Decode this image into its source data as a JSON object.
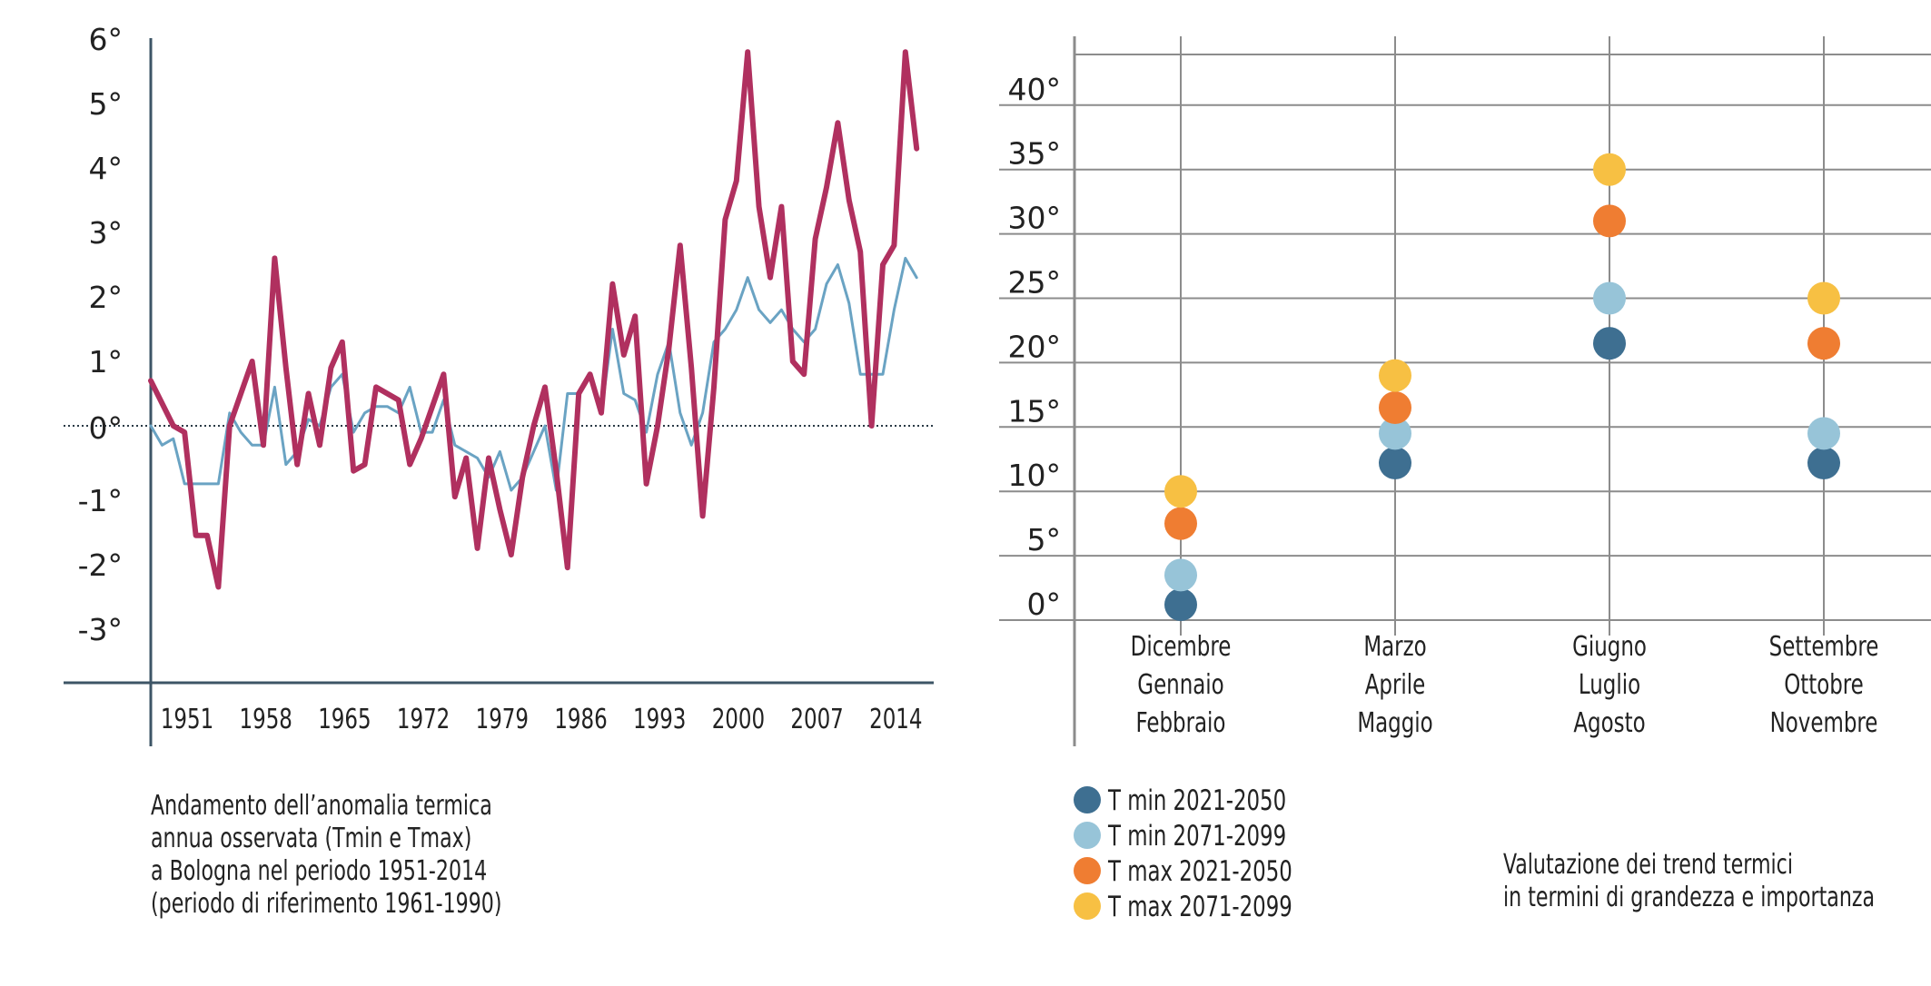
{
  "colors": {
    "tmax_observed": "#b0305f",
    "tmin_observed": "#6aa3c3",
    "axis": "#3d5566",
    "grid": "#8c8c8c",
    "t_min_2021_2050": "#3e6f91",
    "t_min_2071_2099": "#97c4d8",
    "t_max_2021_2050": "#ef7d32",
    "t_max_2071_2099": "#f7c043"
  },
  "left_caption": [
    "Andamento dell’anomalia termica",
    "annua osservata (Tmin e Tmax)",
    "a Bologna nel periodo 1951-2014",
    "(periodo di riferimento 1961-1990)"
  ],
  "right_caption": [
    "Valutazione dei trend termici",
    "in termini di grandezza e importanza"
  ],
  "chart_data": [
    {
      "type": "line",
      "x_tick_labels": [
        "1951",
        "1958",
        "1965",
        "1972",
        "1979",
        "1986",
        "1993",
        "2000",
        "2007",
        "2014"
      ],
      "y_tick_labels": [
        "6°",
        "5°",
        "4°",
        "3°",
        "2°",
        "1°",
        "0°",
        "-1°",
        "-2°",
        "-3°"
      ],
      "ylim": [
        -3.6,
        6.2
      ],
      "xlim": [
        1948,
        2018
      ],
      "reference_line": 0,
      "series": [
        {
          "key": "tmax",
          "x": [
            1948,
            1950,
            1951,
            1952,
            1953,
            1954,
            1955,
            1956,
            1957,
            1958,
            1959,
            1960,
            1961,
            1962,
            1963,
            1964,
            1965,
            1966,
            1967,
            1968,
            1969,
            1970,
            1971,
            1972,
            1973,
            1974,
            1975,
            1976,
            1977,
            1978,
            1979,
            1980,
            1981,
            1982,
            1983,
            1984,
            1985,
            1986,
            1987,
            1988,
            1989,
            1990,
            1991,
            1992,
            1993,
            1994,
            1995,
            1996,
            1997,
            1998,
            1999,
            2000,
            2001,
            2002,
            2003,
            2004,
            2005,
            2006,
            2007,
            2008,
            2009,
            2010,
            2011,
            2012,
            2013,
            2014,
            2015,
            2016
          ],
          "values": [
            0.7,
            0.0,
            -0.1,
            -1.7,
            -1.7,
            -2.5,
            0.0,
            0.5,
            1.0,
            -0.3,
            2.6,
            0.9,
            -0.6,
            0.5,
            -0.3,
            0.9,
            1.3,
            -0.7,
            -0.6,
            0.6,
            0.5,
            0.4,
            -0.6,
            -0.2,
            0.3,
            0.8,
            -1.1,
            -0.5,
            -1.9,
            -0.5,
            -1.3,
            -2.0,
            -0.8,
            0.0,
            0.6,
            -0.7,
            -2.2,
            0.5,
            0.8,
            0.2,
            2.2,
            1.1,
            1.7,
            -0.9,
            0.0,
            1.2,
            2.8,
            0.9,
            -1.4,
            0.6,
            3.2,
            3.8,
            5.8,
            3.4,
            2.3,
            3.4,
            1.0,
            0.8,
            2.9,
            3.7,
            4.7,
            3.5,
            2.7,
            0.0,
            2.5,
            2.8,
            5.8,
            4.3
          ]
        },
        {
          "key": "tmin",
          "x": [
            1948,
            1949,
            1950,
            1951,
            1952,
            1953,
            1954,
            1955,
            1956,
            1957,
            1958,
            1959,
            1960,
            1961,
            1962,
            1963,
            1964,
            1965,
            1966,
            1967,
            1968,
            1969,
            1970,
            1971,
            1972,
            1973,
            1974,
            1975,
            1976,
            1977,
            1978,
            1979,
            1980,
            1981,
            1982,
            1983,
            1984,
            1985,
            1986,
            1987,
            1988,
            1989,
            1990,
            1991,
            1992,
            1993,
            1994,
            1995,
            1996,
            1997,
            1998,
            1999,
            2000,
            2001,
            2002,
            2003,
            2004,
            2005,
            2006,
            2007,
            2008,
            2009,
            2010,
            2011,
            2012,
            2013,
            2014,
            2015,
            2016
          ],
          "values": [
            0.0,
            -0.3,
            -0.2,
            -0.9,
            -0.9,
            -0.9,
            -0.9,
            0.2,
            -0.1,
            -0.3,
            -0.3,
            0.6,
            -0.6,
            -0.4,
            0.1,
            0.0,
            0.6,
            0.8,
            -0.1,
            0.2,
            0.3,
            0.3,
            0.2,
            0.6,
            -0.1,
            -0.1,
            0.4,
            -0.3,
            -0.4,
            -0.5,
            -0.8,
            -0.4,
            -1.0,
            -0.8,
            -0.4,
            0.0,
            -1.0,
            0.5,
            0.5,
            0.8,
            0.2,
            1.5,
            0.5,
            0.4,
            -0.1,
            0.8,
            1.3,
            0.2,
            -0.3,
            0.2,
            1.3,
            1.5,
            1.8,
            2.3,
            1.8,
            1.6,
            1.8,
            1.5,
            1.3,
            1.5,
            2.2,
            2.5,
            1.9,
            0.8,
            0.8,
            0.8,
            1.8,
            2.6,
            2.3
          ]
        }
      ]
    },
    {
      "type": "scatter",
      "categories": [
        [
          "Dicembre",
          "Gennaio",
          "Febbraio"
        ],
        [
          "Marzo",
          "Aprile",
          "Maggio"
        ],
        [
          "Giugno",
          "Luglio",
          "Agosto"
        ],
        [
          "Settembre",
          "Ottobre",
          "Novembre"
        ]
      ],
      "y_tick_labels": [
        "40°",
        "35°",
        "30°",
        "25°",
        "20°",
        "15°",
        "10°",
        "5°",
        "0°"
      ],
      "ylim": [
        0,
        40
      ],
      "series": [
        {
          "key": "t_min_2021_2050",
          "name": "T min 2021-2050",
          "values": [
            1.2,
            12.2,
            21.5,
            12.2
          ]
        },
        {
          "key": "t_min_2071_2099",
          "name": "T min 2071-2099",
          "values": [
            3.5,
            14.5,
            25.0,
            14.5
          ]
        },
        {
          "key": "t_max_2021_2050",
          "name": "T max 2021-2050",
          "values": [
            7.5,
            16.5,
            31.0,
            21.5
          ]
        },
        {
          "key": "t_max_2071_2099",
          "name": "T max 2071-2099",
          "values": [
            10.0,
            19.0,
            35.0,
            25.0
          ]
        }
      ]
    }
  ]
}
